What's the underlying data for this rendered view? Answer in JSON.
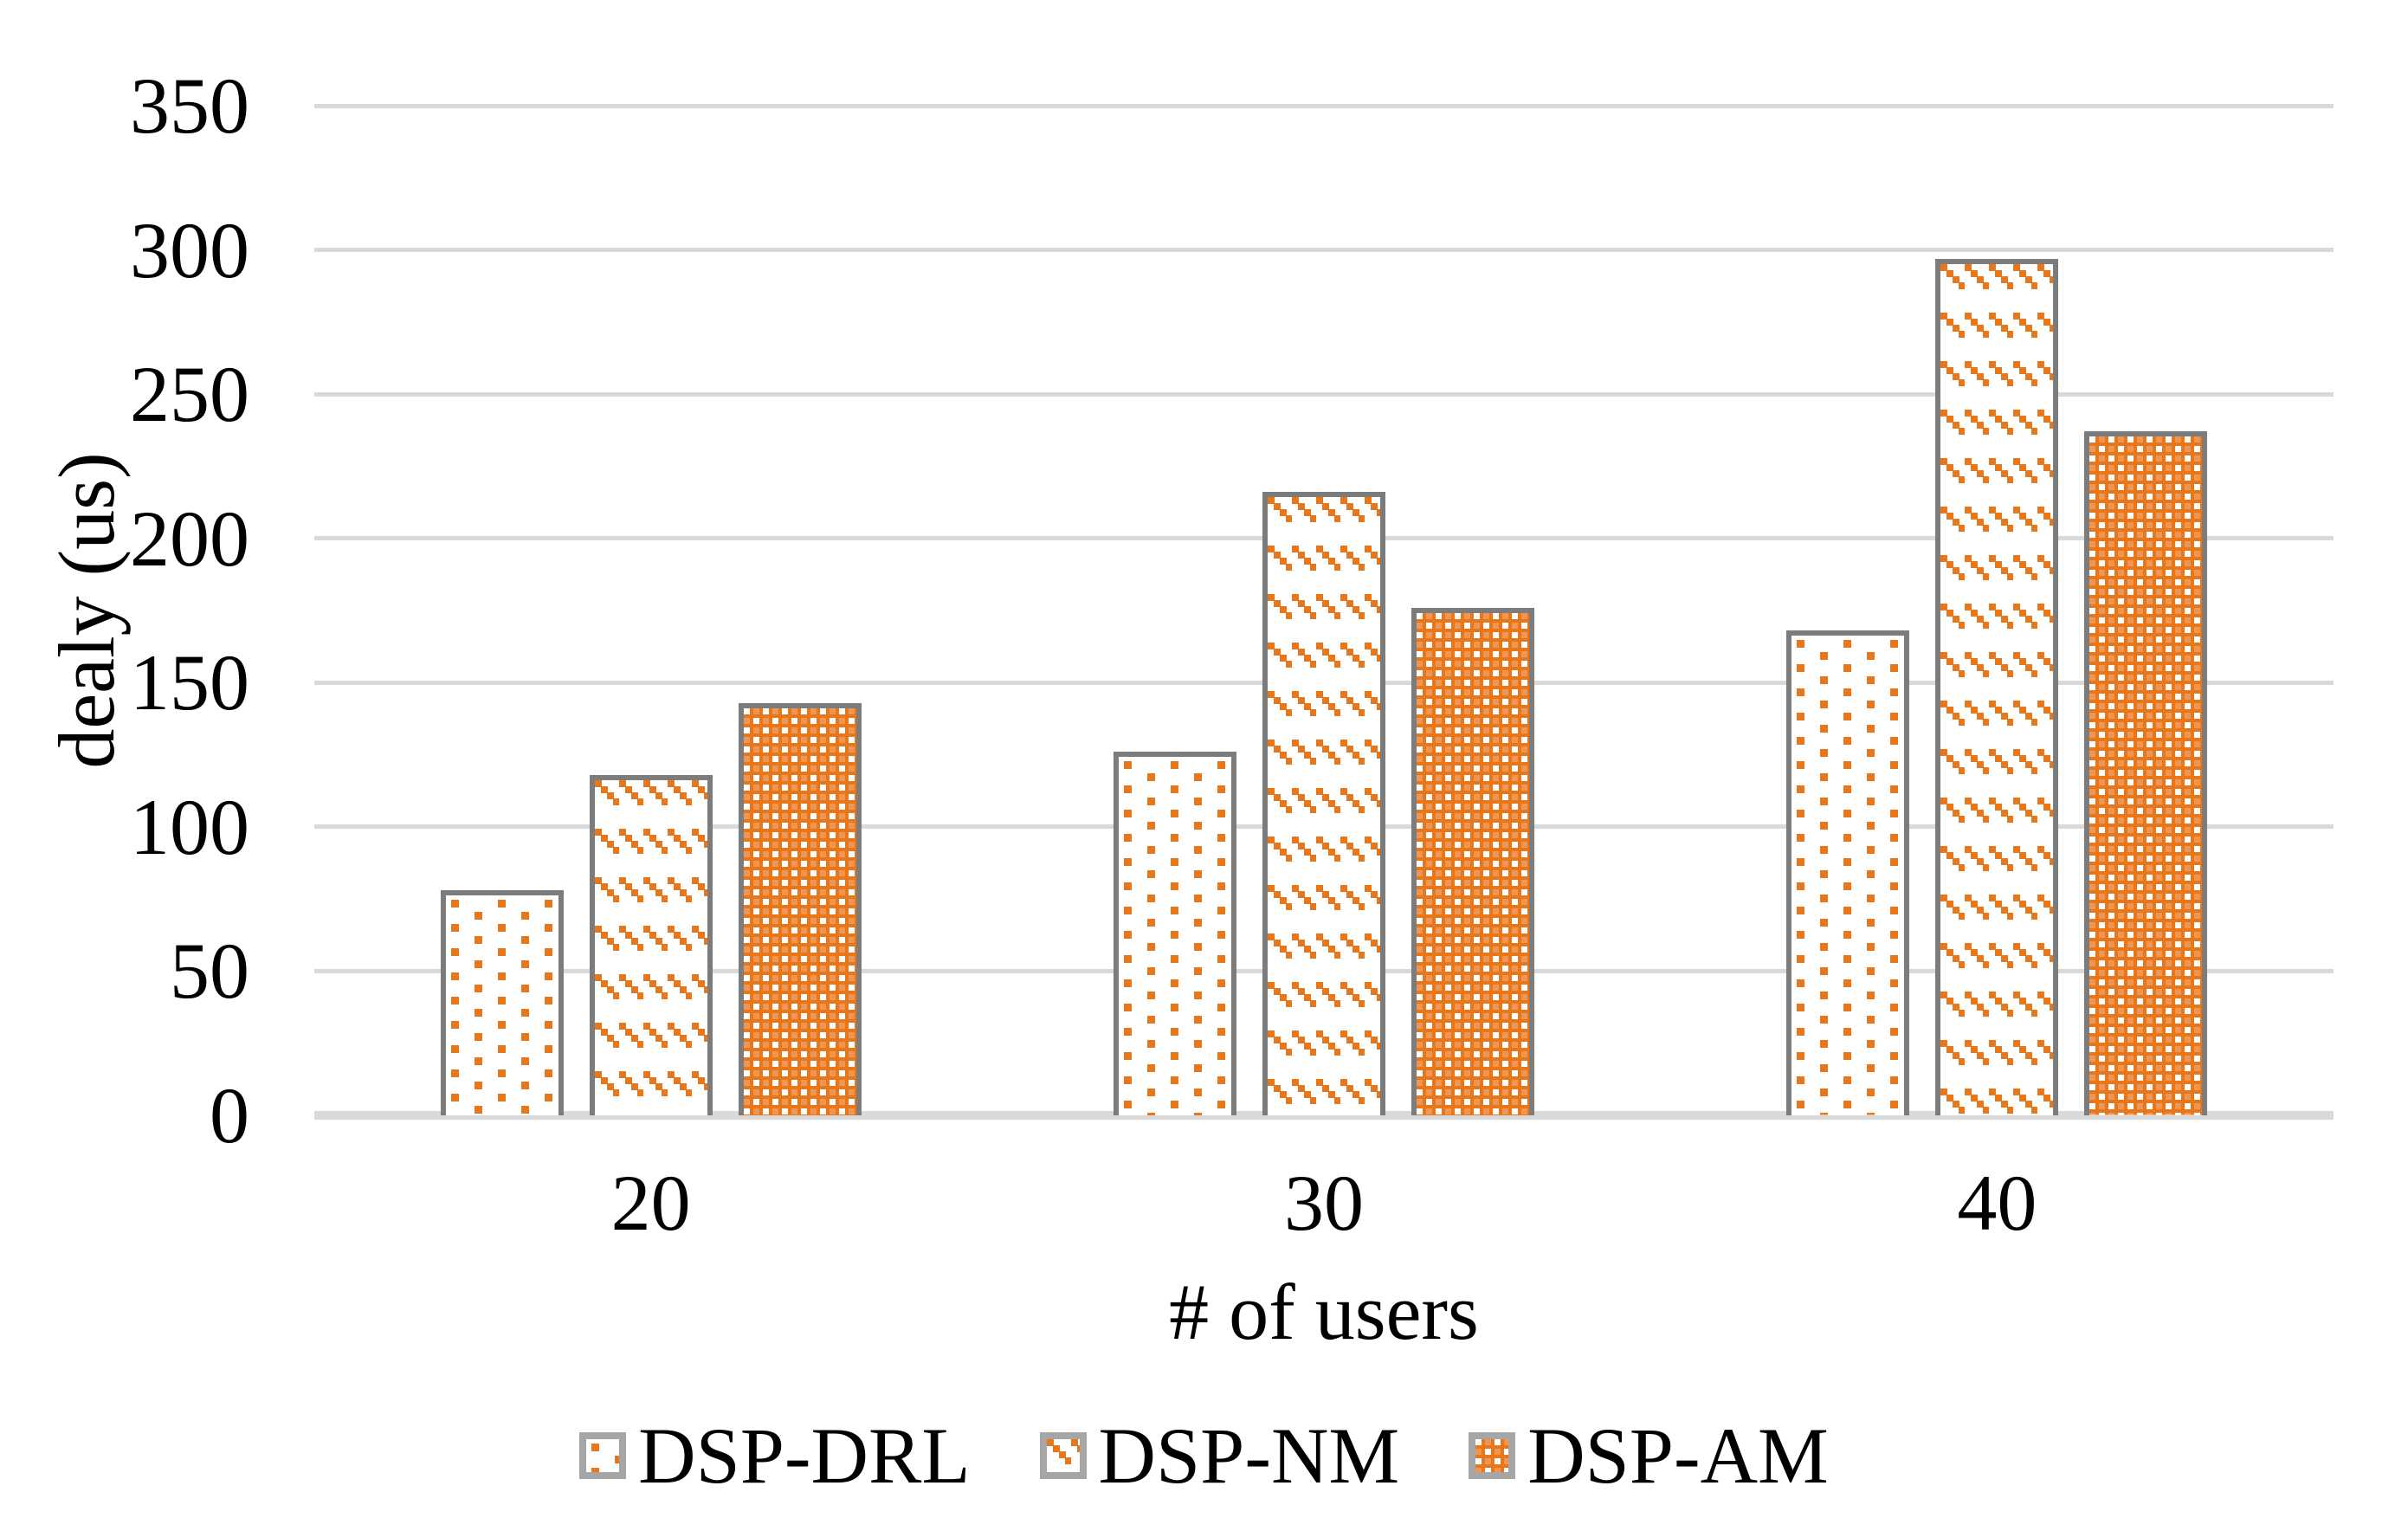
{
  "figure": {
    "background": "#FFFFFF"
  },
  "colors": {
    "pattern_orange": "#E8761A",
    "pattern_orange_light": "#F5B183",
    "bar_border": "#7C7C7C",
    "gridline": "#D9D9D9",
    "axis_baseline": "#D9D9D9",
    "legend_swatch_border": "#A6A6A6",
    "text": "#000000"
  },
  "chart_data": {
    "type": "bar",
    "title": "",
    "categories": [
      "20",
      "30",
      "40"
    ],
    "series": [
      {
        "name": "DSP-DRL",
        "pattern": "dots",
        "values": [
          78,
          126,
          168
        ]
      },
      {
        "name": "DSP-NM",
        "pattern": "diagonal",
        "values": [
          118,
          216,
          297
        ]
      },
      {
        "name": "DSP-AM",
        "pattern": "weave",
        "values": [
          143,
          176,
          237
        ]
      }
    ],
    "xlabel": "# of users",
    "ylabel": "dealy (us)",
    "ylim": [
      0,
      350
    ],
    "yticks": [
      0,
      50,
      100,
      150,
      200,
      250,
      300,
      350
    ],
    "grid": true,
    "legend_position": "bottom",
    "bar_fill_background": "#FFFFFF"
  }
}
